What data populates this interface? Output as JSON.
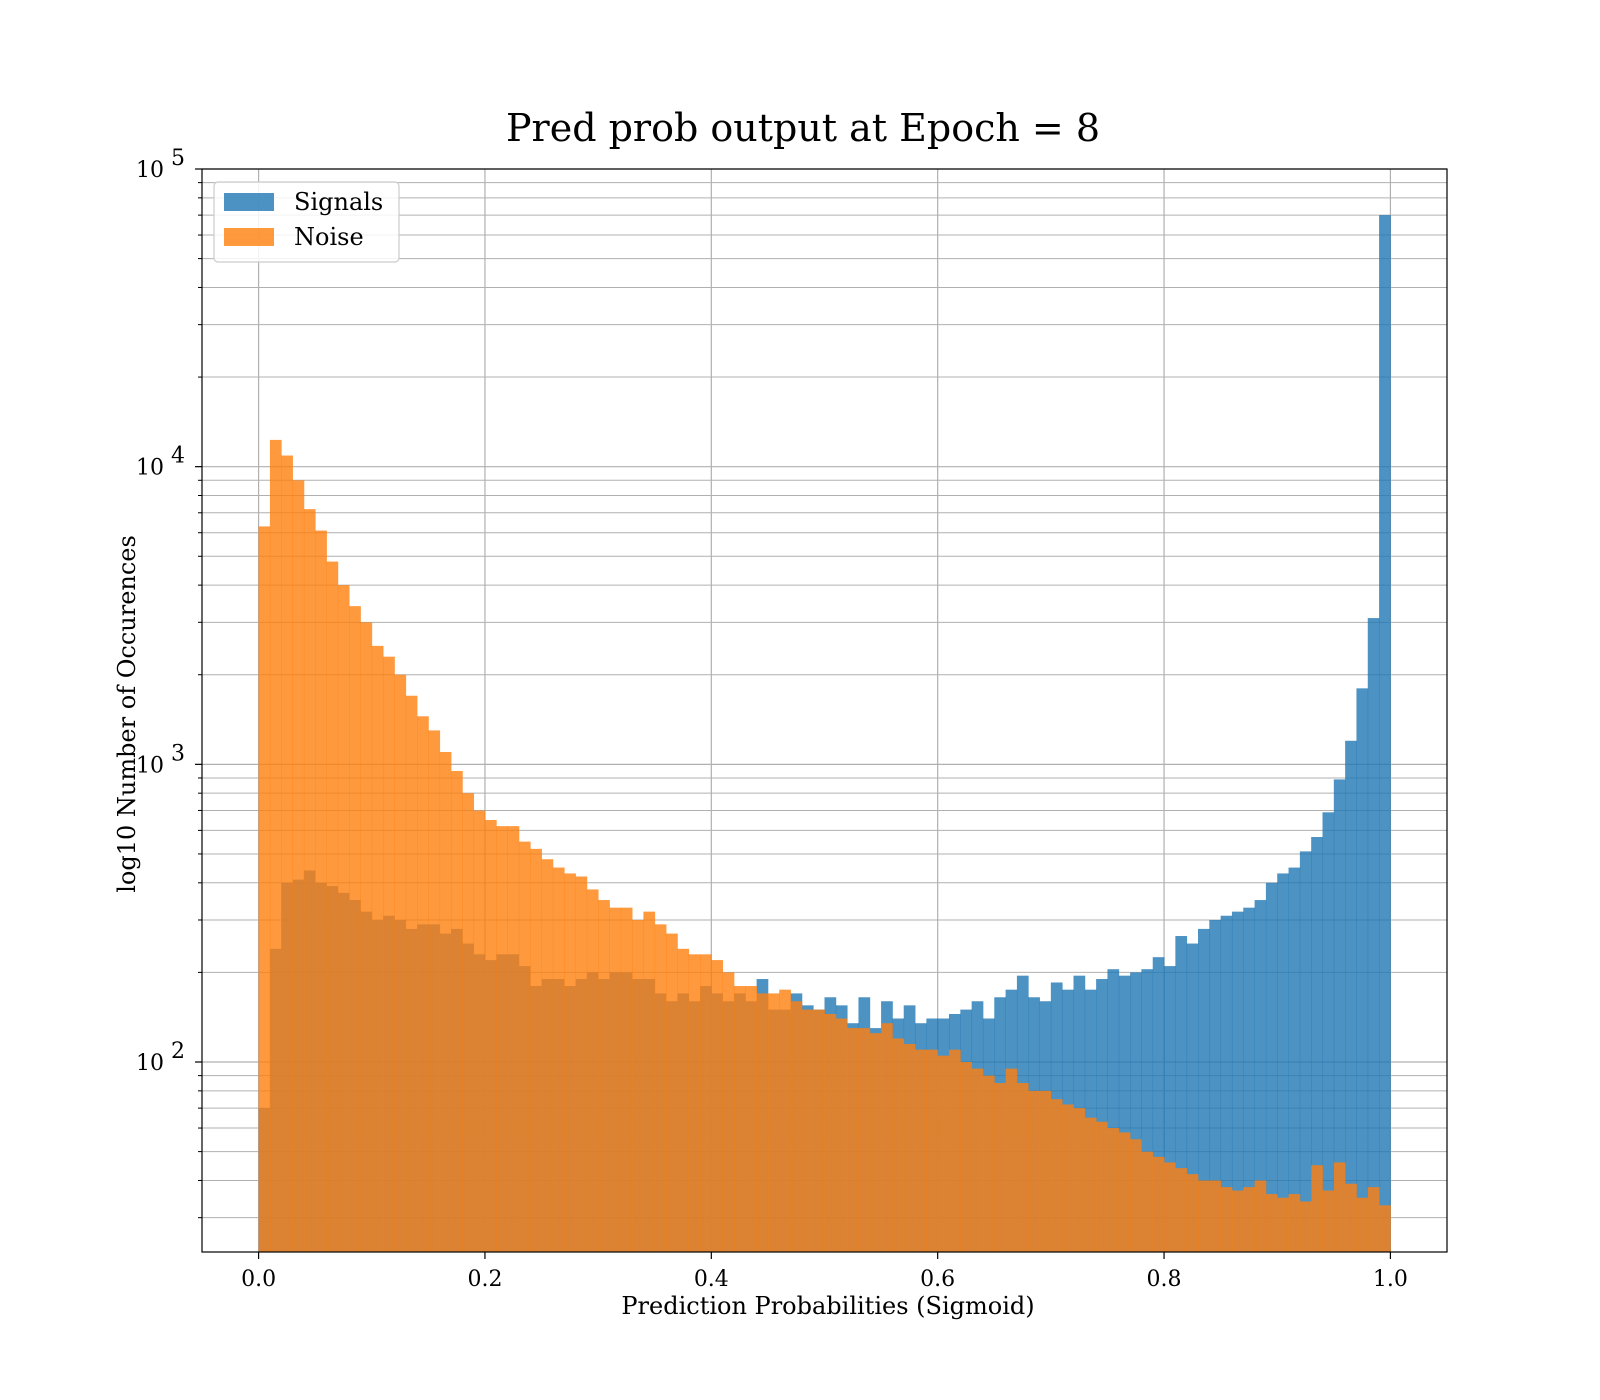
{
  "chart_data": {
    "type": "bar",
    "title": "Pred prob output at Epoch = 8",
    "xlabel": "Prediction Probabilities (Sigmoid)",
    "ylabel": "log10 Number of Occurences",
    "xlim": [
      -0.05,
      1.05
    ],
    "ylim": [
      23,
      100000
    ],
    "yscale": "log",
    "grid": true,
    "legend_position": "top-left",
    "bin_width": 0.01,
    "x_ticks": [
      "0.0",
      "0.2",
      "0.4",
      "0.6",
      "0.8",
      "1.0"
    ],
    "y_ticks": [
      {
        "base": "10",
        "exp": "2",
        "value": 100
      },
      {
        "base": "10",
        "exp": "3",
        "value": 1000
      },
      {
        "base": "10",
        "exp": "4",
        "value": 10000
      },
      {
        "base": "10",
        "exp": "5",
        "value": 100000
      }
    ],
    "series": [
      {
        "name": "Signals",
        "color": "#1f77b4",
        "opacity": 0.8,
        "values": [
          70,
          240,
          400,
          410,
          440,
          400,
          390,
          370,
          350,
          320,
          300,
          310,
          300,
          280,
          290,
          290,
          270,
          280,
          250,
          230,
          220,
          230,
          230,
          210,
          180,
          190,
          190,
          180,
          190,
          200,
          190,
          200,
          200,
          190,
          190,
          170,
          160,
          170,
          160,
          180,
          170,
          160,
          170,
          160,
          190,
          150,
          150,
          170,
          155,
          150,
          165,
          155,
          135,
          165,
          130,
          160,
          140,
          155,
          135,
          140,
          140,
          145,
          150,
          160,
          140,
          165,
          175,
          195,
          165,
          160,
          185,
          175,
          195,
          175,
          190,
          205,
          195,
          200,
          205,
          225,
          210,
          265,
          250,
          280,
          300,
          310,
          320,
          330,
          350,
          400,
          430,
          450,
          510,
          570,
          690,
          890,
          1200,
          1800,
          3100,
          70000
        ]
      },
      {
        "name": "Noise",
        "color": "#ff7f0e",
        "opacity": 0.8,
        "values": [
          6300,
          12300,
          10900,
          9000,
          7200,
          6100,
          4800,
          4000,
          3400,
          3000,
          2500,
          2300,
          2000,
          1700,
          1450,
          1300,
          1100,
          950,
          800,
          700,
          650,
          620,
          620,
          550,
          520,
          480,
          450,
          430,
          420,
          380,
          350,
          330,
          330,
          300,
          320,
          290,
          270,
          240,
          230,
          230,
          220,
          200,
          180,
          180,
          170,
          170,
          175,
          160,
          150,
          150,
          145,
          140,
          130,
          130,
          125,
          135,
          120,
          115,
          110,
          110,
          105,
          110,
          100,
          95,
          90,
          85,
          95,
          85,
          80,
          80,
          75,
          72,
          70,
          65,
          63,
          60,
          58,
          55,
          50,
          48,
          46,
          44,
          42,
          40,
          40,
          38,
          37,
          38,
          40,
          36,
          35,
          36,
          34,
          45,
          37,
          46,
          39,
          35,
          38,
          33
        ]
      }
    ]
  }
}
